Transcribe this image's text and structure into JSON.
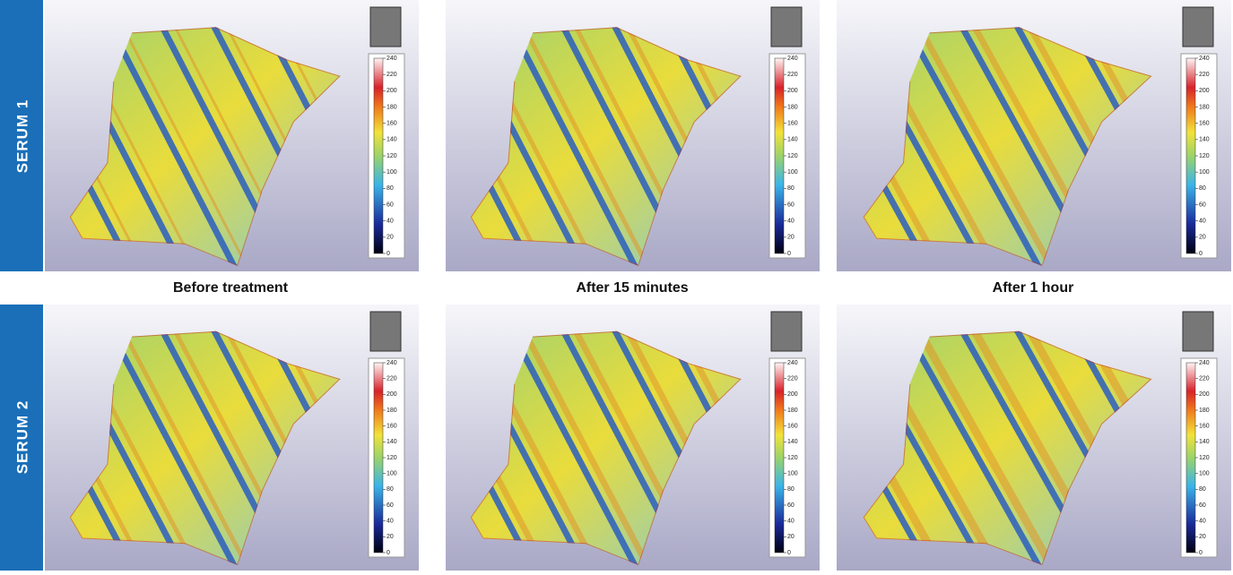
{
  "rows": [
    {
      "label": "SERUM 1"
    },
    {
      "label": "SERUM 2"
    }
  ],
  "captions": [
    "Before treatment",
    "After 15 minutes",
    "After 1 hour"
  ],
  "colorbar_ticks": [
    0,
    20,
    40,
    60,
    80,
    100,
    120,
    140,
    160,
    180,
    200,
    220,
    240
  ]
}
